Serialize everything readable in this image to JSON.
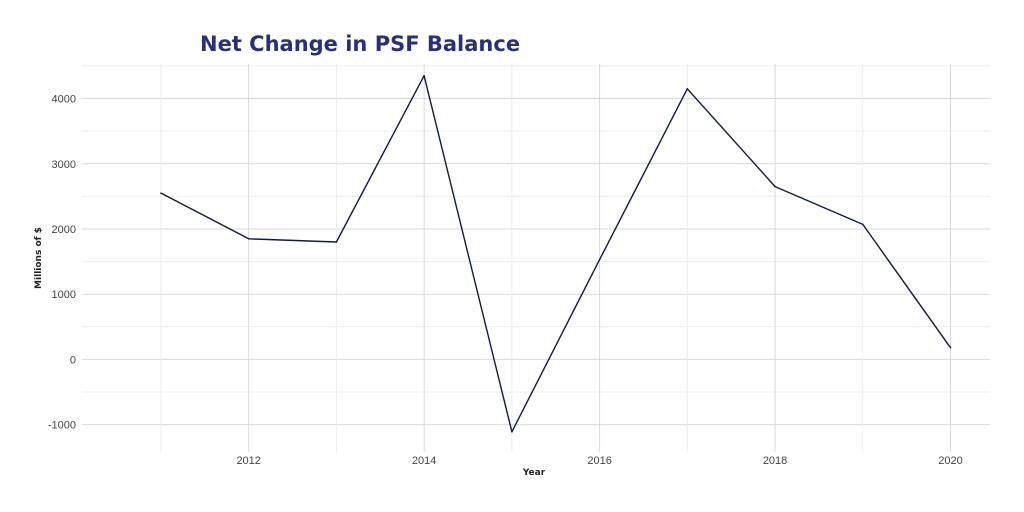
{
  "chart_data": {
    "type": "line",
    "title": "Net Change in PSF Balance",
    "xlabel": "Year",
    "ylabel": "Millions of $",
    "x": [
      2011,
      2012,
      2013,
      2014,
      2015,
      2016,
      2017,
      2018,
      2019,
      2020
    ],
    "series": [
      {
        "values": [
          2550,
          1850,
          1800,
          4350,
          -1110,
          1530,
          4150,
          2650,
          2070,
          180
        ]
      }
    ],
    "xlim": [
      2010.1,
      2020.45
    ],
    "ylim": [
      -1420,
      4530
    ],
    "x_ticks": [
      2012,
      2014,
      2016,
      2018,
      2020
    ],
    "y_ticks": [
      -1000,
      0,
      1000,
      2000,
      3000,
      4000
    ],
    "x_tick_labels": [
      "2012",
      "2014",
      "2016",
      "2018",
      "2020"
    ],
    "y_tick_labels": [
      "-1000",
      "0",
      "1000",
      "2000",
      "3000",
      "4000"
    ],
    "grid": true,
    "legend": "none",
    "colors": {
      "title": "#27307f",
      "line": "#0d1a4a",
      "grid_major": "#d9d9d9",
      "grid_minor": "#ececec"
    }
  }
}
